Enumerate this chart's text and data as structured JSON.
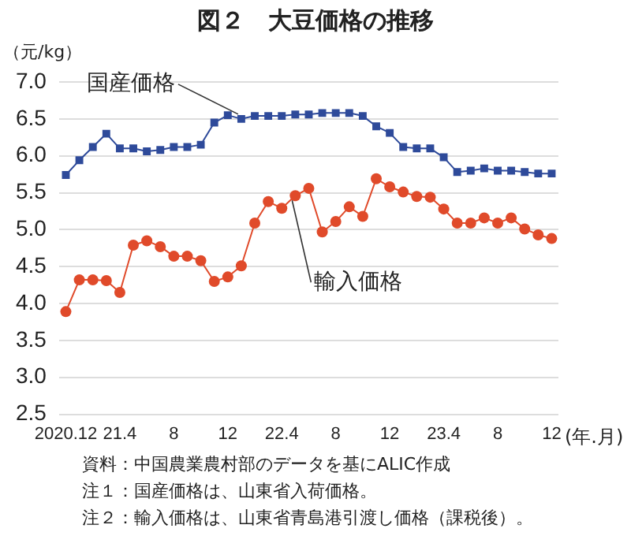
{
  "chart_data": {
    "type": "line",
    "title": "図２　大豆価格の推移",
    "ylabel": "（元/kg）",
    "xlabel": "(年.月)",
    "categories": [
      "2020.12",
      null,
      null,
      null,
      "21.4",
      null,
      null,
      null,
      "8",
      null,
      null,
      null,
      "12",
      null,
      null,
      null,
      "22.4",
      null,
      null,
      null,
      "8",
      null,
      null,
      null,
      "12",
      null,
      null,
      null,
      "23.4",
      null,
      null,
      null,
      "8",
      null,
      null,
      null,
      "12"
    ],
    "series": [
      {
        "name": "国産価格",
        "color": "#2e4a9a",
        "marker": "square",
        "values": [
          5.74,
          5.94,
          6.12,
          6.3,
          6.1,
          6.1,
          6.06,
          6.08,
          6.12,
          6.12,
          6.15,
          6.45,
          6.55,
          6.5,
          6.54,
          6.54,
          6.54,
          6.56,
          6.56,
          6.58,
          6.58,
          6.58,
          6.54,
          6.4,
          6.31,
          6.12,
          6.1,
          6.1,
          5.98,
          5.78,
          5.8,
          5.83,
          5.8,
          5.8,
          5.78,
          5.76,
          5.76
        ]
      },
      {
        "name": "輸入価格",
        "color": "#e04a2a",
        "marker": "circle",
        "values": [
          3.89,
          4.32,
          4.32,
          4.31,
          4.15,
          4.79,
          4.85,
          4.77,
          4.64,
          4.64,
          4.58,
          4.3,
          4.36,
          4.51,
          5.09,
          5.38,
          5.29,
          5.46,
          5.56,
          4.97,
          5.11,
          5.31,
          5.18,
          5.69,
          5.58,
          5.51,
          5.45,
          5.44,
          5.28,
          5.09,
          5.09,
          5.16,
          5.09,
          5.16,
          5.01,
          4.93,
          4.88
        ]
      }
    ],
    "ylim": [
      2.5,
      7.0
    ],
    "yticks": [
      {
        "value": 2.5,
        "label": "2.5"
      },
      {
        "value": 3,
        "label": "3.0"
      },
      {
        "value": 3.5,
        "label": "3.5"
      },
      {
        "value": 4,
        "label": "4.0"
      },
      {
        "value": 4.5,
        "label": "4.5"
      },
      {
        "value": 5,
        "label": "5.0"
      },
      {
        "value": 5.5,
        "label": "5.5"
      },
      {
        "value": 6,
        "label": "6.0"
      },
      {
        "value": 6.5,
        "label": "6.5"
      },
      {
        "value": 7,
        "label": "7.0"
      }
    ],
    "grid": "y",
    "legend": false,
    "line_style": "solid",
    "annotations": [
      "資料：中国農業農村部のデータを基にALIC作成",
      "注１：国産価格は、山東省入荷価格。",
      "注２：輸入価格は、山東省青島港引渡し価格（課税後）。"
    ]
  }
}
